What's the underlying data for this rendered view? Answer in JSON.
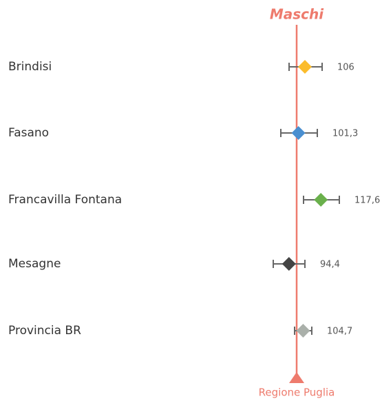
{
  "chart_data": {
    "type": "forest",
    "title": "Maschi",
    "categories": [
      "Brindisi",
      "Fasano",
      "Francavilla Fontana",
      "Mesagne",
      "Provincia BR"
    ],
    "values": [
      106,
      101.3,
      117.6,
      94.4,
      104.7
    ],
    "value_labels": [
      "106",
      "101,3",
      "117,6",
      "94,4",
      "104,7"
    ],
    "lower": [
      94.5,
      88.5,
      105,
      83,
      98.5
    ],
    "upper": [
      118.5,
      115,
      131,
      106,
      111
    ],
    "colors": [
      "#fbbc2c",
      "#4a8fd0",
      "#6ab04c",
      "#444444",
      "#aab0aa"
    ],
    "reference": 100,
    "reference_label": "Regione Puglia",
    "reference_color": "#ee7b6d",
    "xlim": [
      50,
      160
    ]
  }
}
